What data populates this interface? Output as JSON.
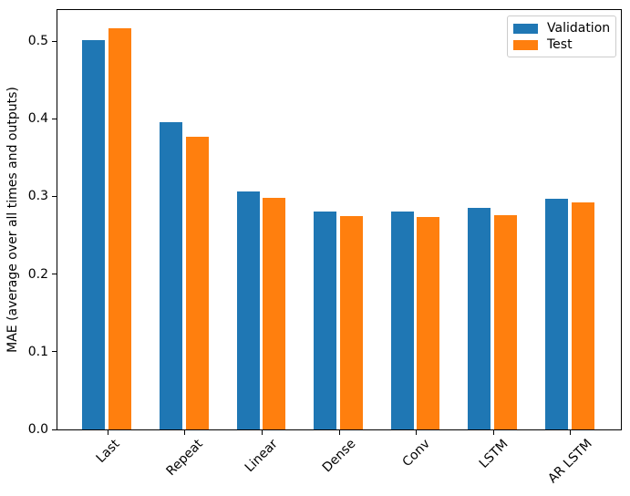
{
  "chart_data": {
    "type": "bar",
    "title": "",
    "xlabel": "",
    "ylabel": "MAE (average over all times and outputs)",
    "categories": [
      "Last",
      "Repeat",
      "Linear",
      "Dense",
      "Conv",
      "LSTM",
      "AR LSTM"
    ],
    "series": [
      {
        "name": "Validation",
        "color": "#1f77b4",
        "values": [
          0.501,
          0.396,
          0.306,
          0.28,
          0.28,
          0.285,
          0.297
        ]
      },
      {
        "name": "Test",
        "color": "#ff7f0e",
        "values": [
          0.516,
          0.377,
          0.298,
          0.275,
          0.274,
          0.276,
          0.292
        ]
      }
    ],
    "yticks": [
      0.0,
      0.1,
      0.2,
      0.3,
      0.4,
      0.5
    ],
    "ytick_labels": [
      "0.0",
      "0.1",
      "0.2",
      "0.3",
      "0.4",
      "0.5"
    ],
    "ylim": [
      0,
      0.54
    ],
    "xlim": [
      -0.652,
      6.652
    ],
    "bar_width_units": 0.3,
    "bar_offset_units": 0.17,
    "x_tick_rotation": 45,
    "grid": false,
    "legend_position": "upper right"
  }
}
